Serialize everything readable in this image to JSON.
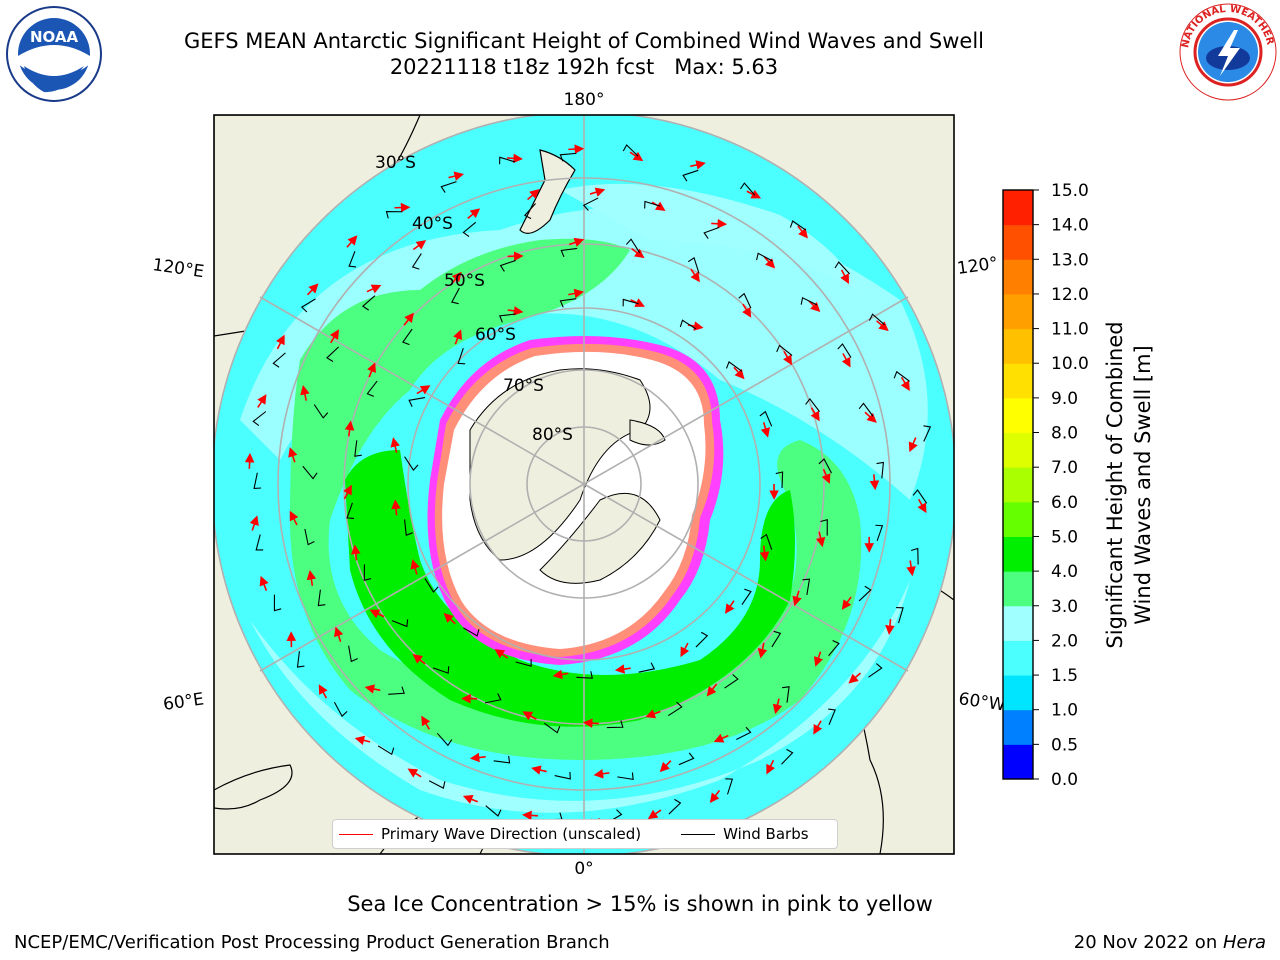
{
  "title": {
    "line1": "GEFS MEAN Antarctic Significant Height of Combined Wind Waves and Swell",
    "line2": "20221118 t18z 192h fcst   Max: 5.63"
  },
  "map": {
    "projection": "south-polar-stereographic",
    "lat_labels": [
      "30°S",
      "40°S",
      "50°S",
      "60°S",
      "70°S",
      "80°S"
    ],
    "lon_labels": {
      "top": "180°",
      "bottom": "0°",
      "upper_left": "120°E",
      "upper_right": "120°",
      "lower_left": "60°E",
      "lower_right": "60°W"
    },
    "colors": {
      "land": "#efefdf",
      "ocean_low": "#a0ffff",
      "ocean_mid": "#4cffff",
      "green_light": "#4cff80",
      "green": "#00ee00",
      "ice_pink": "#ff40ff",
      "ice_orange": "#ffb040",
      "arrow": "#ff0000",
      "barb": "#000000",
      "grid": "#b0b0b0"
    }
  },
  "legend": {
    "primary_wave": "Primary Wave Direction (unscaled)",
    "wind_barbs": "Wind Barbs",
    "primary_color": "#ff0000",
    "barb_color": "#000000"
  },
  "colorbar": {
    "label_line1": "Significant Height of Combined",
    "label_line2": "Wind Waves and Swell [m]",
    "ticks": [
      "0.0",
      "0.5",
      "1.0",
      "1.5",
      "2.0",
      "3.0",
      "4.0",
      "5.0",
      "6.0",
      "7.0",
      "8.0",
      "9.0",
      "10.0",
      "11.0",
      "12.0",
      "13.0",
      "14.0",
      "15.0"
    ],
    "colors": [
      "#0000ff",
      "#0080ff",
      "#00e5ff",
      "#4cffff",
      "#a0ffff",
      "#4cff80",
      "#00ee00",
      "#66ff00",
      "#aaff00",
      "#ddff00",
      "#ffff00",
      "#ffe000",
      "#ffc000",
      "#ffa000",
      "#ff8000",
      "#ff5000",
      "#ff2000"
    ]
  },
  "caption": "Sea Ice Concentration > 15% is shown in pink to yellow",
  "footer": {
    "left": "NCEP/EMC/Verification Post Processing Product Generation Branch",
    "right_prefix": "20 Nov 2022 on ",
    "right_host": "Hera"
  },
  "logos": {
    "left": "NOAA",
    "right": "NATIONAL WEATHER SERVICE"
  }
}
